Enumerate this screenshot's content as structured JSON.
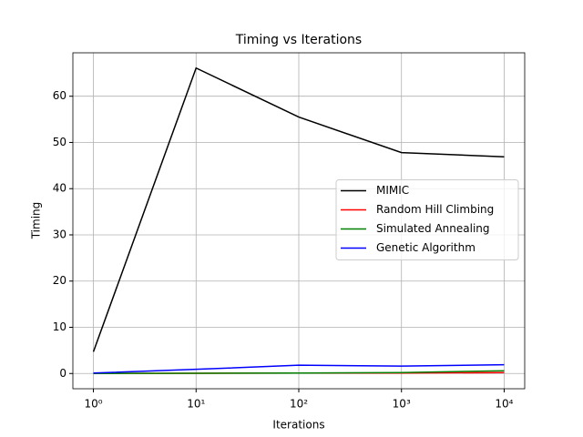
{
  "chart_data": {
    "type": "line",
    "title": "Timing vs Iterations",
    "xlabel": "Iterations",
    "ylabel": "Timing",
    "xscale": "log",
    "grid": true,
    "legend": "center right",
    "x": [
      1,
      10,
      100,
      1000,
      10000
    ],
    "series": [
      {
        "name": "MIMIC",
        "color": "#000000",
        "values": [
          4.7,
          66.1,
          55.5,
          47.8,
          46.9
        ]
      },
      {
        "name": "Random Hill Climbing",
        "color": "#ff0000",
        "values": [
          0.02,
          0.05,
          0.1,
          0.1,
          0.2
        ]
      },
      {
        "name": "Simulated Annealing",
        "color": "#008000",
        "values": [
          0.01,
          0.05,
          0.1,
          0.2,
          0.6
        ]
      },
      {
        "name": "Genetic Algorithm",
        "color": "#0000ff",
        "values": [
          0.1,
          0.9,
          1.8,
          1.6,
          1.9
        ]
      }
    ],
    "xlim": [
      0.631,
      15849
    ],
    "ylim": [
      -3.3,
      69.4
    ],
    "xticks": [
      {
        "value": 1,
        "label": "10⁰"
      },
      {
        "value": 10,
        "label": "10¹"
      },
      {
        "value": 100,
        "label": "10²"
      },
      {
        "value": 1000,
        "label": "10³"
      },
      {
        "value": 10000,
        "label": "10⁴"
      }
    ],
    "yticks": [
      0,
      10,
      20,
      30,
      40,
      50,
      60
    ]
  }
}
